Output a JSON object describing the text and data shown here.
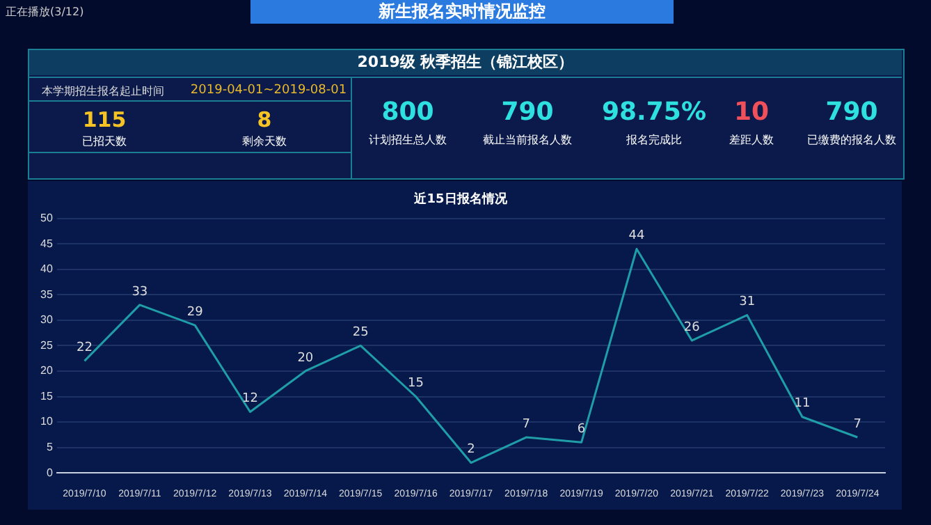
{
  "chart_data": [
    {
      "type": "other",
      "title": "新生报名实时情况监控",
      "subtitle": "2019级 秋季招生（锦江校区）",
      "annotations": [
        "正在播放(3/12)",
        "本学期招生报名起止时间",
        "2019-04-01~2019-08-01",
        "115",
        "已招天数",
        "8",
        "剩余天数",
        "800",
        "计划招生总人数",
        "790",
        "截止当前报名人数",
        "98.75%",
        "报名完成比",
        "10",
        "差距人数",
        "790",
        "已缴费的报名人数"
      ]
    },
    {
      "type": "line",
      "title": "近15日报名情况",
      "categories": [
        "2019/7/10",
        "2019/7/11",
        "2019/7/12",
        "2019/7/13",
        "2019/7/14",
        "2019/7/15",
        "2019/7/16",
        "2019/7/17",
        "2019/7/18",
        "2019/7/19",
        "2019/7/20",
        "2019/7/21",
        "2019/7/22",
        "2019/7/23",
        "2019/7/24"
      ],
      "series": [
        {
          "color": "#1f9ea8",
          "values": [
            22,
            33,
            29,
            12,
            20,
            25,
            15,
            2,
            7,
            6,
            44,
            26,
            31,
            11,
            7
          ]
        }
      ],
      "ylim": [
        0,
        50
      ],
      "yticks": [
        0,
        5,
        10,
        15,
        20,
        25,
        30,
        35,
        40,
        45,
        50
      ],
      "grid": "y",
      "data_labels": true,
      "legend": false,
      "marker": "none",
      "line_style": "solid"
    }
  ]
}
